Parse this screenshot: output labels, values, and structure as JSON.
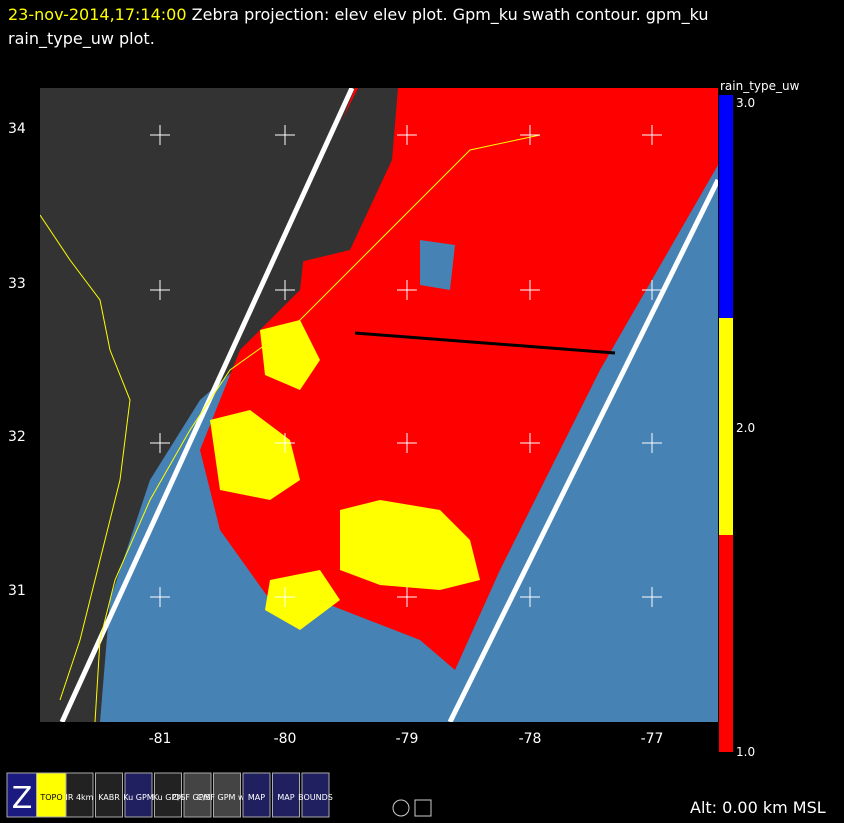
{
  "header": {
    "time": "23-nov-2014,17:14:00",
    "title": "Zebra projection: elev elev  plot.  Gpm_ku swath contour.  gpm_ku rain_type_uw  plot."
  },
  "map": {
    "x_labels": [
      "-81",
      "-80",
      "-79",
      "-78",
      "-77"
    ],
    "y_labels": [
      "34",
      "33",
      "32",
      "31"
    ]
  },
  "colorbar": {
    "title": "rain_type_uw",
    "labels": [
      "3.0",
      "2.0",
      "1.0"
    ]
  },
  "toolbar": {
    "icons": [
      "Z",
      "TOPO",
      "IR 4km",
      "KABR",
      "Ku GPM",
      "Ku GPM",
      "C/SF GPM Ku",
      "C/SF GPM w Ku",
      "MAP",
      "MAP",
      "BOUNDS"
    ]
  },
  "footer": {
    "altitude": "Alt: 0.00 km MSL"
  }
}
